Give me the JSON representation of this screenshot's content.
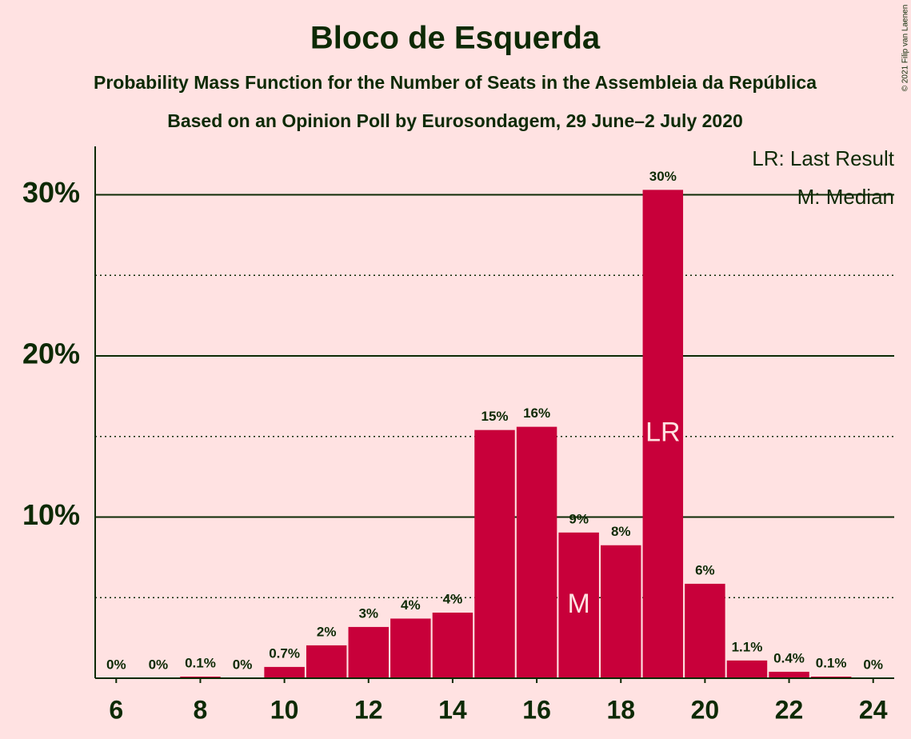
{
  "chart_data": {
    "type": "bar",
    "title": "Bloco de Esquerda",
    "subtitle": "Probability Mass Function for the Number of Seats in the Assembleia da República",
    "subtitle2": "Based on an Opinion Poll by Eurosondagem, 29 June–2 July 2020",
    "copyright": "© 2021 Filip van Laenen",
    "x": [
      6,
      7,
      8,
      9,
      10,
      11,
      12,
      13,
      14,
      15,
      16,
      17,
      18,
      19,
      20,
      21,
      22,
      23,
      24
    ],
    "values": [
      0,
      0,
      0.1,
      0,
      0.7,
      2.04,
      3.18,
      3.7,
      4.07,
      15.4,
      15.6,
      9.04,
      8.25,
      30.3,
      5.86,
      1.1,
      0.4,
      0.1,
      0
    ],
    "value_labels": [
      "0%",
      "0%",
      "0.1%",
      "0%",
      "0.7%",
      "2%",
      "3%",
      "4%",
      "4%",
      "15%",
      "16%",
      "9%",
      "8%",
      "30%",
      "6%",
      "1.1%",
      "0.4%",
      "0.1%",
      "0%"
    ],
    "color": "#c8003a",
    "xlim": [
      5.5,
      24.5
    ],
    "xticks": [
      6,
      8,
      10,
      12,
      14,
      16,
      18,
      20,
      22,
      24
    ],
    "ylim": [
      0,
      33
    ],
    "yticks": [
      {
        "value": 10,
        "label": "10%"
      },
      {
        "value": 20,
        "label": "20%"
      },
      {
        "value": 30,
        "label": "30%"
      }
    ],
    "minor_yticks": [
      5,
      15,
      25
    ],
    "grid": true,
    "markers": [
      {
        "x": 17,
        "label": "M"
      },
      {
        "x": 19,
        "label": "LR"
      }
    ],
    "legend": [
      "LR: Last Result",
      "M: Median"
    ]
  }
}
